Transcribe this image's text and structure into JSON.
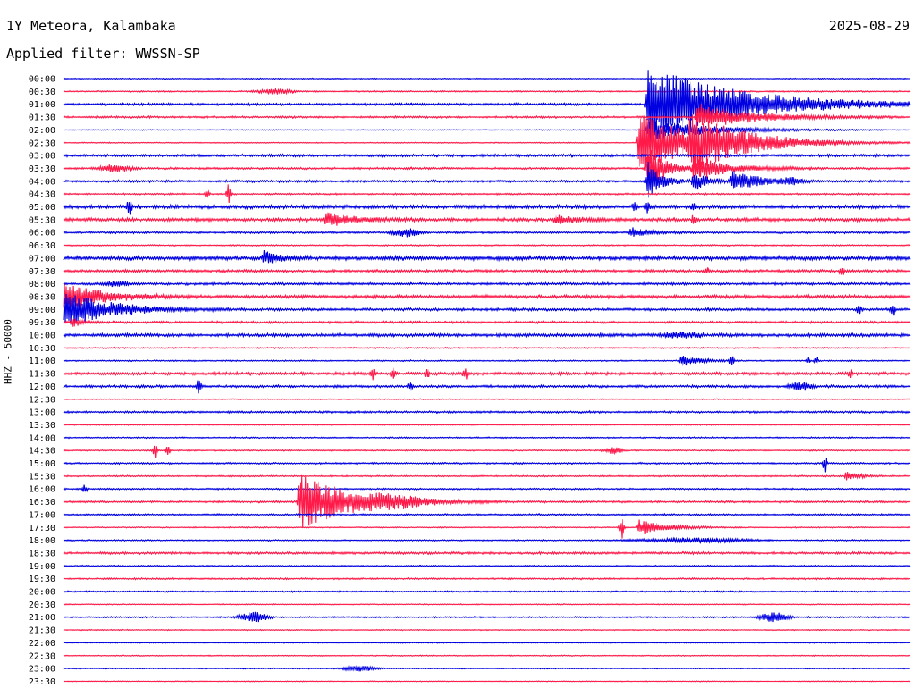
{
  "header": {
    "station": "1Y Meteora, Kalambaka",
    "date": "2025-08-29",
    "filter": "Applied filter: WWSSN-SP"
  },
  "chart_data": {
    "type": "line",
    "title": "1Y Meteora, Kalambaka",
    "ylabel": "HHZ - 50000",
    "colors": [
      "#0000e0",
      "#ff1a4a"
    ],
    "row_labels": [
      "00:00",
      "00:30",
      "01:00",
      "01:30",
      "02:00",
      "02:30",
      "03:00",
      "03:30",
      "04:00",
      "04:30",
      "05:00",
      "05:30",
      "06:00",
      "06:30",
      "07:00",
      "07:30",
      "08:00",
      "08:30",
      "09:00",
      "09:30",
      "10:00",
      "10:30",
      "11:00",
      "11:30",
      "12:00",
      "12:30",
      "13:00",
      "13:30",
      "14:00",
      "14:30",
      "15:00",
      "15:30",
      "16:00",
      "16:30",
      "17:00",
      "17:30",
      "18:00",
      "18:30",
      "19:00",
      "19:30",
      "20:00",
      "20:30",
      "21:00",
      "21:30",
      "22:00",
      "22:30",
      "23:00",
      "23:30"
    ],
    "noise": [
      0.6,
      0.8,
      1.5,
      1.2,
      0.5,
      0.6,
      1.6,
      1.2,
      1.4,
      1.0,
      2.2,
      2.0,
      1.2,
      0.8,
      2.5,
      1.6,
      1.5,
      2.0,
      1.6,
      1.4,
      2.0,
      0.8,
      0.8,
      1.8,
      1.5,
      0.6,
      1.2,
      0.6,
      0.8,
      0.8,
      1.0,
      0.9,
      0.9,
      1.2,
      1.0,
      0.7,
      0.8,
      1.4,
      0.8,
      1.0,
      0.9,
      0.6,
      0.9,
      0.6,
      0.5,
      0.6,
      0.6,
      0.5
    ],
    "events": [
      {
        "row": 1,
        "t": 0.25,
        "amp": 3,
        "dur": 0.03,
        "kind": "blob"
      },
      {
        "row": 2,
        "t": 0.69,
        "amp": 45,
        "dur": 0.1,
        "kind": "quake"
      },
      {
        "row": 3,
        "t": 0.749,
        "amp": 15,
        "dur": 0.06,
        "kind": "quake"
      },
      {
        "row": 4,
        "t": 0.69,
        "amp": 12,
        "dur": 0.07,
        "kind": "quake"
      },
      {
        "row": 5,
        "t": 0.68,
        "amp": 35,
        "dur": 0.06,
        "kind": "quake"
      },
      {
        "row": 5,
        "t": 0.74,
        "amp": 22,
        "dur": 0.07,
        "kind": "quake"
      },
      {
        "row": 7,
        "t": 0.06,
        "amp": 4,
        "dur": 0.03,
        "kind": "blob"
      },
      {
        "row": 7,
        "t": 0.69,
        "amp": 28,
        "dur": 0.02,
        "kind": "quake"
      },
      {
        "row": 7,
        "t": 0.745,
        "amp": 14,
        "dur": 0.04,
        "kind": "quake"
      },
      {
        "row": 8,
        "t": 0.79,
        "amp": 12,
        "dur": 0.03,
        "kind": "quake"
      },
      {
        "row": 8,
        "t": 0.69,
        "amp": 22,
        "dur": 0.015,
        "kind": "quake"
      },
      {
        "row": 8,
        "t": 0.745,
        "amp": 12,
        "dur": 0.015,
        "kind": "quake"
      },
      {
        "row": 8,
        "t": 0.86,
        "amp": 3,
        "dur": 0.02,
        "kind": "blob"
      },
      {
        "row": 9,
        "t": 0.17,
        "amp": 7,
        "dur": 0.005,
        "kind": "spike"
      },
      {
        "row": 9,
        "t": 0.195,
        "amp": 13,
        "dur": 0.005,
        "kind": "spike"
      },
      {
        "row": 10,
        "t": 0.078,
        "amp": 14,
        "dur": 0.01,
        "kind": "spike"
      },
      {
        "row": 10,
        "t": 0.675,
        "amp": 5,
        "dur": 0.01,
        "kind": "spike"
      },
      {
        "row": 10,
        "t": 0.69,
        "amp": 8,
        "dur": 0.01,
        "kind": "spike"
      },
      {
        "row": 10,
        "t": 0.745,
        "amp": 4,
        "dur": 0.01,
        "kind": "spike"
      },
      {
        "row": 11,
        "t": 0.31,
        "amp": 8,
        "dur": 0.03,
        "kind": "quake"
      },
      {
        "row": 11,
        "t": 0.58,
        "amp": 5,
        "dur": 0.025,
        "kind": "quake"
      },
      {
        "row": 11,
        "t": 0.745,
        "amp": 6,
        "dur": 0.01,
        "kind": "spike"
      },
      {
        "row": 12,
        "t": 0.405,
        "amp": 5,
        "dur": 0.025,
        "kind": "blob"
      },
      {
        "row": 12,
        "t": 0.67,
        "amp": 6,
        "dur": 0.02,
        "kind": "quake"
      },
      {
        "row": 14,
        "t": 0.237,
        "amp": 8,
        "dur": 0.015,
        "kind": "quake"
      },
      {
        "row": 15,
        "t": 0.76,
        "amp": 4,
        "dur": 0.01,
        "kind": "spike"
      },
      {
        "row": 15,
        "t": 0.92,
        "amp": 6,
        "dur": 0.01,
        "kind": "spike"
      },
      {
        "row": 16,
        "t": 0.063,
        "amp": 3,
        "dur": 0.02,
        "kind": "blob"
      },
      {
        "row": 17,
        "t": 0.0,
        "amp": 18,
        "dur": 0.04,
        "kind": "quake"
      },
      {
        "row": 18,
        "t": 0.0,
        "amp": 22,
        "dur": 0.05,
        "kind": "quake"
      },
      {
        "row": 18,
        "t": 0.94,
        "amp": 5,
        "dur": 0.01,
        "kind": "spike"
      },
      {
        "row": 18,
        "t": 0.98,
        "amp": 7,
        "dur": 0.01,
        "kind": "spike"
      },
      {
        "row": 19,
        "t": 0.01,
        "amp": 6,
        "dur": 0.01,
        "kind": "quake"
      },
      {
        "row": 20,
        "t": 0.73,
        "amp": 3,
        "dur": 0.03,
        "kind": "blob"
      },
      {
        "row": 22,
        "t": 0.73,
        "amp": 7,
        "dur": 0.02,
        "kind": "quake"
      },
      {
        "row": 22,
        "t": 0.79,
        "amp": 8,
        "dur": 0.005,
        "kind": "spike"
      },
      {
        "row": 22,
        "t": 0.88,
        "amp": 4,
        "dur": 0.01,
        "kind": "spike"
      },
      {
        "row": 22,
        "t": 0.89,
        "amp": 5,
        "dur": 0.01,
        "kind": "spike"
      },
      {
        "row": 23,
        "t": 0.365,
        "amp": 8,
        "dur": 0.005,
        "kind": "spike"
      },
      {
        "row": 23,
        "t": 0.39,
        "amp": 7,
        "dur": 0.005,
        "kind": "spike"
      },
      {
        "row": 23,
        "t": 0.43,
        "amp": 6,
        "dur": 0.01,
        "kind": "spike"
      },
      {
        "row": 23,
        "t": 0.475,
        "amp": 9,
        "dur": 0.005,
        "kind": "spike"
      },
      {
        "row": 23,
        "t": 0.93,
        "amp": 6,
        "dur": 0.01,
        "kind": "spike"
      },
      {
        "row": 24,
        "t": 0.16,
        "amp": 13,
        "dur": 0.004,
        "kind": "spike"
      },
      {
        "row": 24,
        "t": 0.41,
        "amp": 7,
        "dur": 0.01,
        "kind": "spike"
      },
      {
        "row": 24,
        "t": 0.87,
        "amp": 5,
        "dur": 0.02,
        "kind": "blob"
      },
      {
        "row": 29,
        "t": 0.108,
        "amp": 12,
        "dur": 0.005,
        "kind": "spike"
      },
      {
        "row": 29,
        "t": 0.123,
        "amp": 9,
        "dur": 0.005,
        "kind": "spike"
      },
      {
        "row": 29,
        "t": 0.65,
        "amp": 4,
        "dur": 0.015,
        "kind": "blob"
      },
      {
        "row": 30,
        "t": 0.9,
        "amp": 10,
        "dur": 0.004,
        "kind": "spike"
      },
      {
        "row": 31,
        "t": 0.925,
        "amp": 5,
        "dur": 0.015,
        "kind": "quake"
      },
      {
        "row": 32,
        "t": 0.025,
        "amp": 5,
        "dur": 0.004,
        "kind": "spike"
      },
      {
        "row": 33,
        "t": 0.279,
        "amp": 32,
        "dur": 0.06,
        "kind": "quake"
      },
      {
        "row": 33,
        "t": 0.39,
        "amp": 4,
        "dur": 0.06,
        "kind": "blob"
      },
      {
        "row": 35,
        "t": 0.66,
        "amp": 14,
        "dur": 0.004,
        "kind": "spike"
      },
      {
        "row": 35,
        "t": 0.68,
        "amp": 9,
        "dur": 0.03,
        "kind": "quake"
      },
      {
        "row": 36,
        "t": 0.745,
        "amp": 2.5,
        "dur": 0.1,
        "kind": "blob"
      },
      {
        "row": 42,
        "t": 0.225,
        "amp": 6,
        "dur": 0.025,
        "kind": "blob"
      },
      {
        "row": 42,
        "t": 0.84,
        "amp": 6,
        "dur": 0.025,
        "kind": "blob"
      },
      {
        "row": 46,
        "t": 0.35,
        "amp": 3,
        "dur": 0.03,
        "kind": "blob"
      }
    ]
  }
}
